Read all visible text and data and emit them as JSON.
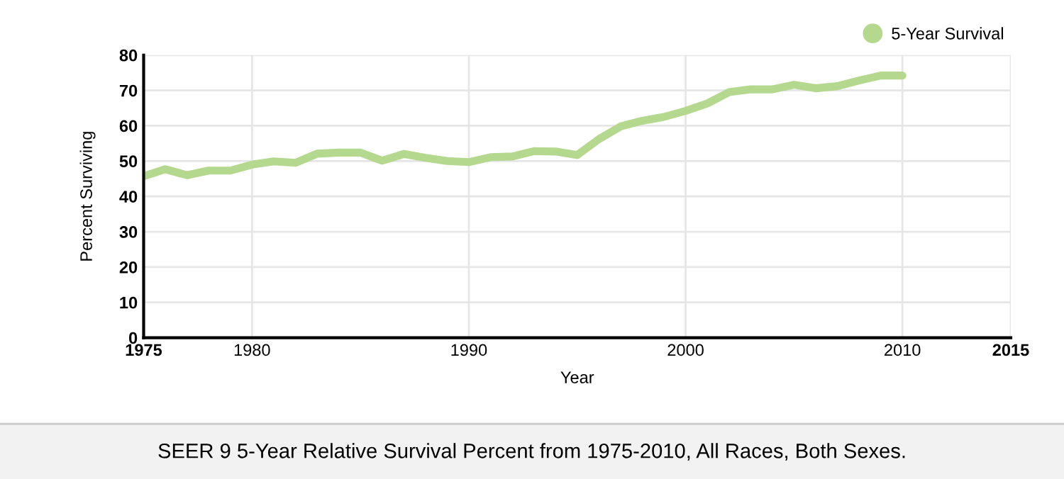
{
  "chart_data": {
    "type": "line",
    "xlabel": "Year",
    "ylabel": "Percent Surviving",
    "x": [
      1975,
      1976,
      1977,
      1978,
      1979,
      1980,
      1981,
      1982,
      1983,
      1984,
      1985,
      1986,
      1987,
      1988,
      1989,
      1990,
      1991,
      1992,
      1993,
      1994,
      1995,
      1996,
      1997,
      1998,
      1999,
      2000,
      2001,
      2002,
      2003,
      2004,
      2005,
      2006,
      2007,
      2008,
      2009,
      2010
    ],
    "series": [
      {
        "name": "5-Year Survival",
        "color": "#b5d88f",
        "values": [
          45.7,
          47.7,
          46,
          47.3,
          47.3,
          49,
          49.9,
          49.5,
          52.1,
          52.4,
          52.4,
          50.1,
          52,
          50.9,
          50,
          49.7,
          51.1,
          51.3,
          52.8,
          52.7,
          51.7,
          56.2,
          59.8,
          61.4,
          62.5,
          64.2,
          66.3,
          69.5,
          70.3,
          70.3,
          71.6,
          70.6,
          71.2,
          72.8,
          74.2,
          74.2
        ]
      }
    ],
    "xlim": [
      1975,
      2015
    ],
    "xticks": [
      1975,
      1980,
      1990,
      2000,
      2010,
      2015
    ],
    "ylim": [
      0,
      80
    ],
    "yticks": [
      0,
      10,
      20,
      30,
      40,
      50,
      60,
      70,
      80
    ],
    "grid": true,
    "legend": "top right",
    "marker": "none",
    "line_style": "solid",
    "annotations": [
      "SEER 9 5-Year Relative Survival Percent from 1975-2010, All Races, Both Sexes."
    ]
  }
}
